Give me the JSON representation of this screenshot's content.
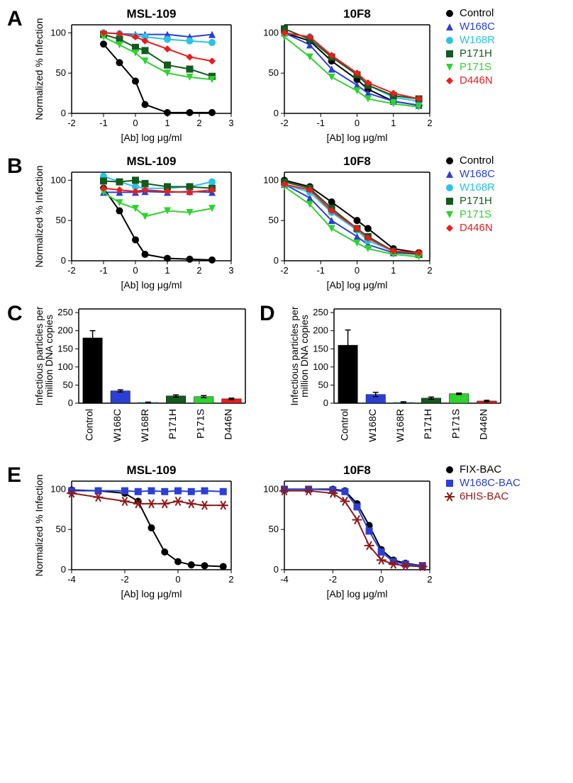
{
  "colors": {
    "Control": "#000000",
    "W168C": "#2b3fd6",
    "W168R": "#29c3e6",
    "P171H": "#145a1e",
    "P171S": "#2fd22f",
    "D446N": "#ef1a1a",
    "FIX-BAC": "#000000",
    "W168C-BAC": "#2b3fd6",
    "6HIS-BAC": "#8e1b1b"
  },
  "markers": {
    "Control": "circle",
    "W168C": "triangle",
    "W168R": "circle",
    "P171H": "square",
    "P171S": "triangle-down",
    "D446N": "diamond",
    "FIX-BAC": "circle",
    "W168C-BAC": "square",
    "6HIS-BAC": "asterisk"
  },
  "panelA": {
    "left": {
      "title": "MSL-109",
      "xlabel": "[Ab] log μg/ml",
      "ylabel": "Normalized % Infection",
      "xlim": [
        -2,
        3
      ],
      "ylim": [
        0,
        110
      ],
      "xticks": [
        -2,
        -1,
        0,
        1,
        2,
        3
      ],
      "yticks": [
        0,
        50,
        100
      ],
      "series": {
        "Control": {
          "x": [
            -1,
            -0.5,
            0,
            0.3,
            1,
            1.7,
            2.4
          ],
          "y": [
            86,
            63,
            40,
            11,
            1,
            1,
            1
          ]
        },
        "W168C": {
          "x": [
            -1,
            -0.5,
            0,
            0.3,
            1,
            1.7,
            2.4
          ],
          "y": [
            100,
            99,
            98,
            98,
            98,
            95,
            98
          ]
        },
        "W168R": {
          "x": [
            -1,
            -0.5,
            0,
            0.3,
            1,
            1.7,
            2.4
          ],
          "y": [
            100,
            99,
            96,
            95,
            92,
            90,
            88
          ]
        },
        "P171H": {
          "x": [
            -1,
            -0.5,
            0,
            0.3,
            1,
            1.7,
            2.4
          ],
          "y": [
            98,
            92,
            82,
            78,
            60,
            55,
            46
          ]
        },
        "P171S": {
          "x": [
            -1,
            -0.5,
            0,
            0.3,
            1,
            1.7,
            2.4
          ],
          "y": [
            95,
            85,
            75,
            65,
            50,
            45,
            42
          ]
        },
        "D446N": {
          "x": [
            -1,
            -0.5,
            0,
            0.3,
            1,
            1.7,
            2.4
          ],
          "y": [
            100,
            99,
            95,
            90,
            80,
            70,
            65
          ]
        }
      },
      "legend": [
        "Control",
        "W168C",
        "W168R",
        "P171H",
        "P171S",
        "D446N"
      ]
    },
    "right": {
      "title": "10F8",
      "xlabel": "[Ab] log μg/ml",
      "ylabel": "",
      "xlim": [
        -2,
        2
      ],
      "ylim": [
        0,
        110
      ],
      "xticks": [
        -2,
        -1,
        0,
        1,
        2
      ],
      "yticks": [
        0,
        50,
        100
      ],
      "series": {
        "Control": {
          "x": [
            -2,
            -1.3,
            -0.7,
            0,
            0.3,
            1,
            1.7
          ],
          "y": [
            100,
            90,
            65,
            42,
            30,
            15,
            10
          ]
        },
        "W168C": {
          "x": [
            -2,
            -1.3,
            -0.7,
            0,
            0.3,
            1,
            1.7
          ],
          "y": [
            100,
            85,
            55,
            35,
            25,
            15,
            10
          ]
        },
        "W168R": {
          "x": [
            -2,
            -1.3,
            -0.7,
            0,
            0.3,
            1,
            1.7
          ],
          "y": [
            100,
            95,
            70,
            48,
            35,
            20,
            15
          ]
        },
        "P171H": {
          "x": [
            -2,
            -1.3,
            -0.7,
            0,
            0.3,
            1,
            1.7
          ],
          "y": [
            105,
            92,
            70,
            48,
            35,
            22,
            18
          ]
        },
        "P171S": {
          "x": [
            -2,
            -1.3,
            -0.7,
            0,
            0.3,
            1,
            1.7
          ],
          "y": [
            95,
            70,
            45,
            28,
            18,
            12,
            8
          ]
        },
        "D446N": {
          "x": [
            -2,
            -1.3,
            -0.7,
            0,
            0.3,
            1,
            1.7
          ],
          "y": [
            100,
            95,
            72,
            50,
            38,
            25,
            18
          ]
        }
      }
    }
  },
  "panelB": {
    "left": {
      "title": "MSL-109",
      "xlabel": "[Ab] log μg/ml",
      "ylabel": "Normalized % Infection",
      "xlim": [
        -2,
        3
      ],
      "ylim": [
        0,
        110
      ],
      "xticks": [
        -2,
        -1,
        0,
        1,
        2,
        3
      ],
      "yticks": [
        0,
        50,
        100
      ],
      "series": {
        "Control": {
          "x": [
            -1,
            -0.5,
            0,
            0.3,
            1,
            1.7,
            2.4
          ],
          "y": [
            90,
            62,
            26,
            8,
            3,
            2,
            1
          ]
        },
        "W168C": {
          "x": [
            -1,
            -0.5,
            0,
            0.3,
            1,
            1.7,
            2.4
          ],
          "y": [
            85,
            85,
            85,
            86,
            85,
            86,
            85
          ]
        },
        "W168R": {
          "x": [
            -1,
            -0.5,
            0,
            0.3,
            1,
            1.7,
            2.4
          ],
          "y": [
            105,
            98,
            92,
            90,
            90,
            92,
            98
          ]
        },
        "P171H": {
          "x": [
            -1,
            -0.5,
            0,
            0.3,
            1,
            1.7,
            2.4
          ],
          "y": [
            99,
            98,
            100,
            96,
            92,
            92,
            90
          ]
        },
        "P171S": {
          "x": [
            -1,
            -0.5,
            0,
            0.3,
            1,
            1.7,
            2.4
          ],
          "y": [
            85,
            72,
            65,
            55,
            62,
            60,
            65
          ]
        },
        "D446N": {
          "x": [
            -1,
            -0.5,
            0,
            0.3,
            1,
            1.7,
            2.4
          ],
          "y": [
            90,
            88,
            86,
            88,
            86,
            85,
            88
          ]
        }
      },
      "legend": [
        "Control",
        "W168C",
        "W168R",
        "P171H",
        "P171S",
        "D446N"
      ]
    },
    "right": {
      "title": "10F8",
      "xlabel": "[Ab] log μg/ml",
      "ylabel": "",
      "xlim": [
        -2,
        2
      ],
      "ylim": [
        0,
        110
      ],
      "xticks": [
        -2,
        -1,
        0,
        1,
        2
      ],
      "yticks": [
        0,
        50,
        100
      ],
      "series": {
        "Control": {
          "x": [
            -2,
            -1.3,
            -0.7,
            0,
            0.3,
            1,
            1.7
          ],
          "y": [
            100,
            92,
            73,
            50,
            40,
            15,
            10
          ]
        },
        "W168C": {
          "x": [
            -2,
            -1.3,
            -0.7,
            0,
            0.3,
            1,
            1.7
          ],
          "y": [
            95,
            78,
            50,
            30,
            20,
            10,
            8
          ]
        },
        "W168R": {
          "x": [
            -2,
            -1.3,
            -0.7,
            0,
            0.3,
            1,
            1.7
          ],
          "y": [
            95,
            85,
            60,
            38,
            25,
            12,
            8
          ]
        },
        "P171H": {
          "x": [
            -2,
            -1.3,
            -0.7,
            0,
            0.3,
            1,
            1.7
          ],
          "y": [
            98,
            90,
            65,
            40,
            30,
            12,
            8
          ]
        },
        "P171S": {
          "x": [
            -2,
            -1.3,
            -0.7,
            0,
            0.3,
            1,
            1.7
          ],
          "y": [
            92,
            70,
            40,
            22,
            15,
            8,
            5
          ]
        },
        "D446N": {
          "x": [
            -2,
            -1.3,
            -0.7,
            0,
            0.3,
            1,
            1.7
          ],
          "y": [
            95,
            88,
            62,
            40,
            28,
            12,
            10
          ]
        }
      }
    }
  },
  "panelC": {
    "ylabel": "Infectious particles per\nmillion DNA copies",
    "ylim": [
      0,
      260
    ],
    "yticks": [
      0,
      50,
      100,
      150,
      200,
      250
    ],
    "categories": [
      "Control",
      "W168C",
      "W168R",
      "P171H",
      "P171S",
      "D446N"
    ],
    "values": [
      180,
      34,
      2,
      20,
      18,
      12
    ],
    "errors": [
      20,
      3,
      1,
      3,
      3,
      2
    ]
  },
  "panelD": {
    "ylabel": "Infectious particles per\nmillion DNA copies",
    "ylim": [
      0,
      260
    ],
    "yticks": [
      0,
      50,
      100,
      150,
      200,
      250
    ],
    "categories": [
      "Control",
      "W168C",
      "W168R",
      "P171H",
      "P171S",
      "D446N"
    ],
    "values": [
      160,
      24,
      2,
      14,
      26,
      6
    ],
    "errors": [
      42,
      6,
      2,
      3,
      2,
      2
    ]
  },
  "panelE": {
    "left": {
      "title": "MSL-109",
      "xlabel": "[Ab] log μg/ml",
      "ylabel": "Normalized % Infection",
      "xlim": [
        -4,
        2
      ],
      "ylim": [
        0,
        110
      ],
      "xticks": [
        -4,
        -2,
        0,
        2
      ],
      "yticks": [
        0,
        50,
        100
      ],
      "series": {
        "FIX-BAC": {
          "x": [
            -4,
            -3,
            -2,
            -1.5,
            -1,
            -0.5,
            0,
            0.5,
            1,
            1.7
          ],
          "y": [
            99,
            98,
            95,
            85,
            52,
            22,
            10,
            6,
            5,
            4
          ]
        },
        "W168C-BAC": {
          "x": [
            -4,
            -3,
            -2,
            -1.5,
            -1,
            -0.5,
            0,
            0.5,
            1,
            1.7
          ],
          "y": [
            98,
            98,
            98,
            97,
            98,
            97,
            98,
            97,
            98,
            97
          ]
        },
        "6HIS-BAC": {
          "x": [
            -4,
            -3,
            -2,
            -1.5,
            -1,
            -0.5,
            0,
            0.5,
            1,
            1.7
          ],
          "y": [
            95,
            90,
            85,
            82,
            82,
            82,
            85,
            82,
            80,
            80
          ]
        }
      },
      "legend": [
        "FIX-BAC",
        "W168C-BAC",
        "6HIS-BAC"
      ]
    },
    "right": {
      "title": "10F8",
      "xlabel": "[Ab] log μg/ml",
      "ylabel": "",
      "xlim": [
        -4,
        2
      ],
      "ylim": [
        0,
        110
      ],
      "xticks": [
        -4,
        -2,
        0,
        2
      ],
      "yticks": [
        0,
        50,
        100
      ],
      "series": {
        "FIX-BAC": {
          "x": [
            -4,
            -3,
            -2,
            -1.5,
            -1,
            -0.5,
            0,
            0.5,
            1,
            1.7
          ],
          "y": [
            100,
            100,
            100,
            98,
            82,
            55,
            25,
            12,
            8,
            5
          ]
        },
        "W168C-BAC": {
          "x": [
            -4,
            -3,
            -2,
            -1.5,
            -1,
            -0.5,
            0,
            0.5,
            1,
            1.7
          ],
          "y": [
            100,
            100,
            99,
            97,
            78,
            48,
            22,
            10,
            7,
            5
          ]
        },
        "6HIS-BAC": {
          "x": [
            -4,
            -3,
            -2,
            -1.5,
            -1,
            -0.5,
            0,
            0.5,
            1,
            1.7
          ],
          "y": [
            98,
            98,
            95,
            85,
            62,
            30,
            12,
            7,
            5,
            4
          ]
        }
      }
    }
  },
  "chart_style": {
    "title_fontsize": 17,
    "title_fontweight": "bold",
    "axis_label_fontsize": 14,
    "tick_fontsize": 13,
    "marker_size": 5,
    "line_width": 2
  }
}
